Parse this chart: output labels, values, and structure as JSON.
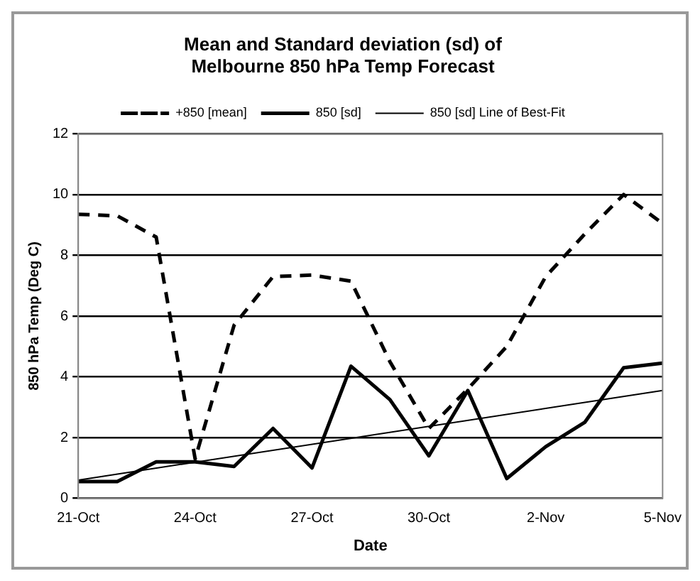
{
  "chart_data": {
    "type": "line",
    "title": [
      "Mean and Standard deviation (sd) of",
      "Melbourne 850 hPa Temp Forecast"
    ],
    "xlabel": "Date",
    "ylabel": "850 hPa Temp (Deg C)",
    "x": [
      "--10-21",
      "--10-22",
      "--10-23",
      "--10-24",
      "--10-25",
      "--10-26",
      "--10-27",
      "--10-28",
      "--10-29",
      "--10-30",
      "--10-31",
      "--11-01",
      "--11-02",
      "--11-03",
      "--11-04",
      "--11-05"
    ],
    "series": [
      {
        "name": "+850 [mean]",
        "color": "#000000",
        "line_style": "dashed",
        "values": [
          9.35,
          9.3,
          8.6,
          1.3,
          5.7,
          7.3,
          7.35,
          7.15,
          4.5,
          2.3,
          3.6,
          5.0,
          7.3,
          8.7,
          10.0,
          9.05
        ]
      },
      {
        "name": "850 [sd]",
        "color": "#000000",
        "line_style": "solid",
        "values": [
          0.55,
          0.55,
          1.2,
          1.2,
          1.05,
          2.3,
          1.0,
          4.35,
          3.25,
          1.4,
          3.55,
          0.65,
          1.7,
          2.5,
          4.3,
          4.45
        ]
      },
      {
        "name": "850 [sd] Line of Best-Fit",
        "color": "#000000",
        "line_style": "solid",
        "type": "line",
        "x": [
          "--10-21",
          "--11-05"
        ],
        "values": [
          0.6,
          3.55
        ]
      }
    ],
    "xlim": [
      "--10-21",
      "--11-05"
    ],
    "xticks": [
      {
        "value": "--10-21",
        "label": "21-Oct"
      },
      {
        "value": "--10-24",
        "label": "24-Oct"
      },
      {
        "value": "--10-27",
        "label": "27-Oct"
      },
      {
        "value": "--10-30",
        "label": "30-Oct"
      },
      {
        "value": "--11-02",
        "label": "2-Nov"
      },
      {
        "value": "--11-05",
        "label": "5-Nov"
      }
    ],
    "ylim": [
      0,
      12
    ],
    "yticks": [
      0,
      2,
      4,
      6,
      8,
      10,
      12
    ],
    "grid": "y",
    "legend": "top",
    "marker": "none"
  }
}
